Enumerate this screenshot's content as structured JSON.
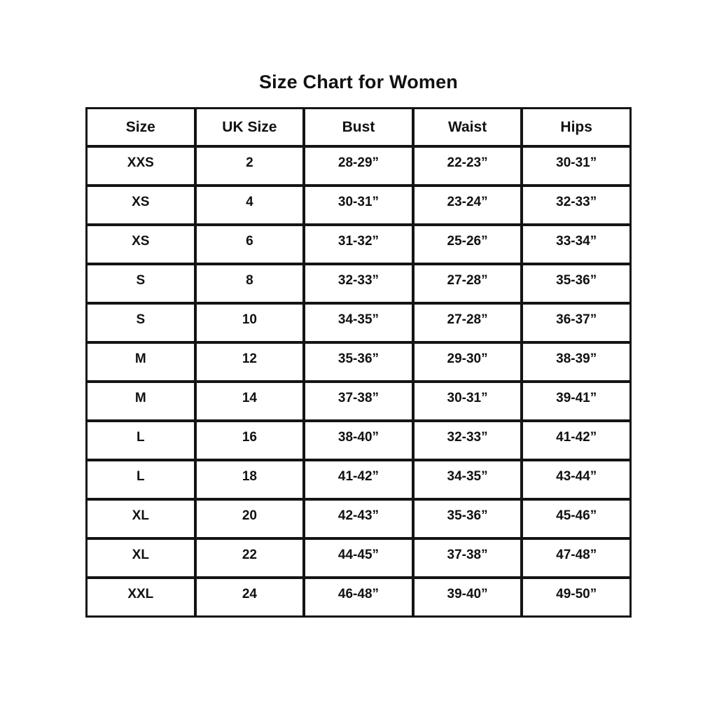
{
  "title": "Size Chart for Women",
  "colors": {
    "background": "#ffffff",
    "text": "#111111",
    "grid": "#141414"
  },
  "chart_data": {
    "type": "table",
    "title": "Size Chart for Women",
    "columns": [
      "Size",
      "UK Size",
      "Bust",
      "Waist",
      "Hips"
    ],
    "rows": [
      [
        "XXS",
        "2",
        "28-29”",
        "22-23”",
        "30-31”"
      ],
      [
        "XS",
        "4",
        "30-31”",
        "23-24”",
        "32-33”"
      ],
      [
        "XS",
        "6",
        "31-32”",
        "25-26”",
        "33-34”"
      ],
      [
        "S",
        "8",
        "32-33”",
        "27-28”",
        "35-36”"
      ],
      [
        "S",
        "10",
        "34-35”",
        "27-28”",
        "36-37”"
      ],
      [
        "M",
        "12",
        "35-36”",
        "29-30”",
        "38-39”"
      ],
      [
        "M",
        "14",
        "37-38”",
        "30-31”",
        "39-41”"
      ],
      [
        "L",
        "16",
        "38-40”",
        "32-33”",
        "41-42”"
      ],
      [
        "L",
        "18",
        "41-42”",
        "34-35”",
        "43-44”"
      ],
      [
        "XL",
        "20",
        "42-43”",
        "35-36”",
        "45-46”"
      ],
      [
        "XL",
        "22",
        "44-45”",
        "37-38”",
        "47-48”"
      ],
      [
        "XXL",
        "24",
        "46-48”",
        "39-40”",
        "49-50”"
      ]
    ]
  }
}
